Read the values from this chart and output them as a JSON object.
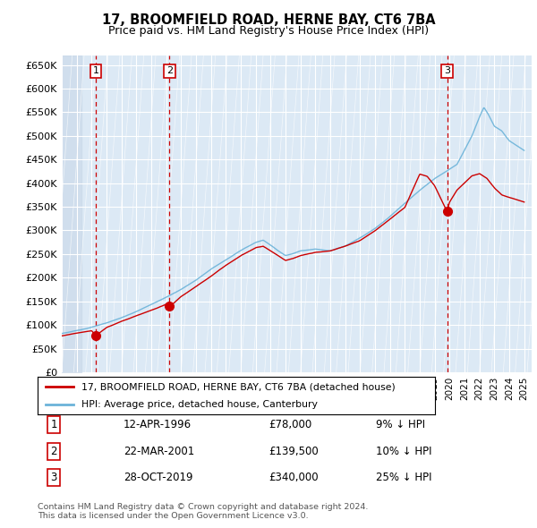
{
  "title": "17, BROOMFIELD ROAD, HERNE BAY, CT6 7BA",
  "subtitle": "Price paid vs. HM Land Registry's House Price Index (HPI)",
  "ylim": [
    0,
    670000
  ],
  "xlim_start": 1994.0,
  "xlim_end": 2025.5,
  "plot_bg_color": "#dce9f5",
  "grid_color": "#ffffff",
  "red_line_color": "#cc0000",
  "blue_line_color": "#6bb3d9",
  "vline_color": "#cc0000",
  "sale_dates": [
    1996.283,
    2001.222,
    2019.831
  ],
  "sale_prices": [
    78000,
    139500,
    340000
  ],
  "sale_labels": [
    "1",
    "2",
    "3"
  ],
  "legend_entries": [
    "17, BROOMFIELD ROAD, HERNE BAY, CT6 7BA (detached house)",
    "HPI: Average price, detached house, Canterbury"
  ],
  "table_data": [
    [
      "1",
      "12-APR-1996",
      "£78,000",
      "9% ↓ HPI"
    ],
    [
      "2",
      "22-MAR-2001",
      "£139,500",
      "10% ↓ HPI"
    ],
    [
      "3",
      "28-OCT-2019",
      "£340,000",
      "25% ↓ HPI"
    ]
  ],
  "footer": "Contains HM Land Registry data © Crown copyright and database right 2024.\nThis data is licensed under the Open Government Licence v3.0.",
  "ytick_labels": [
    "£0",
    "£50K",
    "£100K",
    "£150K",
    "£200K",
    "£250K",
    "£300K",
    "£350K",
    "£400K",
    "£450K",
    "£500K",
    "£550K",
    "£600K",
    "£650K"
  ],
  "ytick_values": [
    0,
    50000,
    100000,
    150000,
    200000,
    250000,
    300000,
    350000,
    400000,
    450000,
    500000,
    550000,
    600000,
    650000
  ],
  "hpi_knots_x": [
    1994.0,
    1995.0,
    1996.0,
    1997.0,
    1998.0,
    1999.0,
    2000.0,
    2001.0,
    2002.0,
    2003.0,
    2004.0,
    2005.0,
    2006.0,
    2007.0,
    2007.5,
    2008.0,
    2008.5,
    2009.0,
    2009.5,
    2010.0,
    2011.0,
    2012.0,
    2013.0,
    2014.0,
    2015.0,
    2016.0,
    2017.0,
    2018.0,
    2019.0,
    2019.5,
    2020.0,
    2020.5,
    2021.0,
    2021.5,
    2022.0,
    2022.3,
    2022.6,
    2023.0,
    2023.5,
    2024.0,
    2024.5,
    2025.0
  ],
  "hpi_knots_y": [
    82000,
    88000,
    95000,
    104000,
    115000,
    128000,
    143000,
    158000,
    175000,
    195000,
    218000,
    238000,
    258000,
    275000,
    280000,
    270000,
    258000,
    248000,
    252000,
    258000,
    262000,
    258000,
    268000,
    285000,
    305000,
    330000,
    358000,
    385000,
    410000,
    420000,
    430000,
    440000,
    470000,
    500000,
    540000,
    560000,
    545000,
    520000,
    510000,
    490000,
    480000,
    470000
  ],
  "red_knots_x": [
    1994.0,
    1995.0,
    1996.0,
    1996.283,
    1997.0,
    1998.0,
    1999.0,
    2000.0,
    2001.0,
    2001.222,
    2002.0,
    2003.0,
    2004.0,
    2005.0,
    2006.0,
    2007.0,
    2007.5,
    2008.0,
    2008.5,
    2009.0,
    2009.5,
    2010.0,
    2011.0,
    2012.0,
    2013.0,
    2014.0,
    2015.0,
    2016.0,
    2017.0,
    2018.0,
    2018.5,
    2019.0,
    2019.831,
    2020.0,
    2020.5,
    2021.0,
    2021.5,
    2022.0,
    2022.5,
    2023.0,
    2023.5,
    2024.0,
    2024.5,
    2025.0
  ],
  "red_knots_y": [
    77000,
    83000,
    88000,
    78000,
    95000,
    108000,
    120000,
    132000,
    145000,
    139500,
    162000,
    183000,
    205000,
    228000,
    248000,
    265000,
    268000,
    258000,
    248000,
    238000,
    242000,
    248000,
    255000,
    258000,
    268000,
    280000,
    300000,
    325000,
    350000,
    420000,
    415000,
    395000,
    340000,
    360000,
    385000,
    400000,
    415000,
    420000,
    410000,
    390000,
    375000,
    370000,
    365000,
    360000
  ]
}
